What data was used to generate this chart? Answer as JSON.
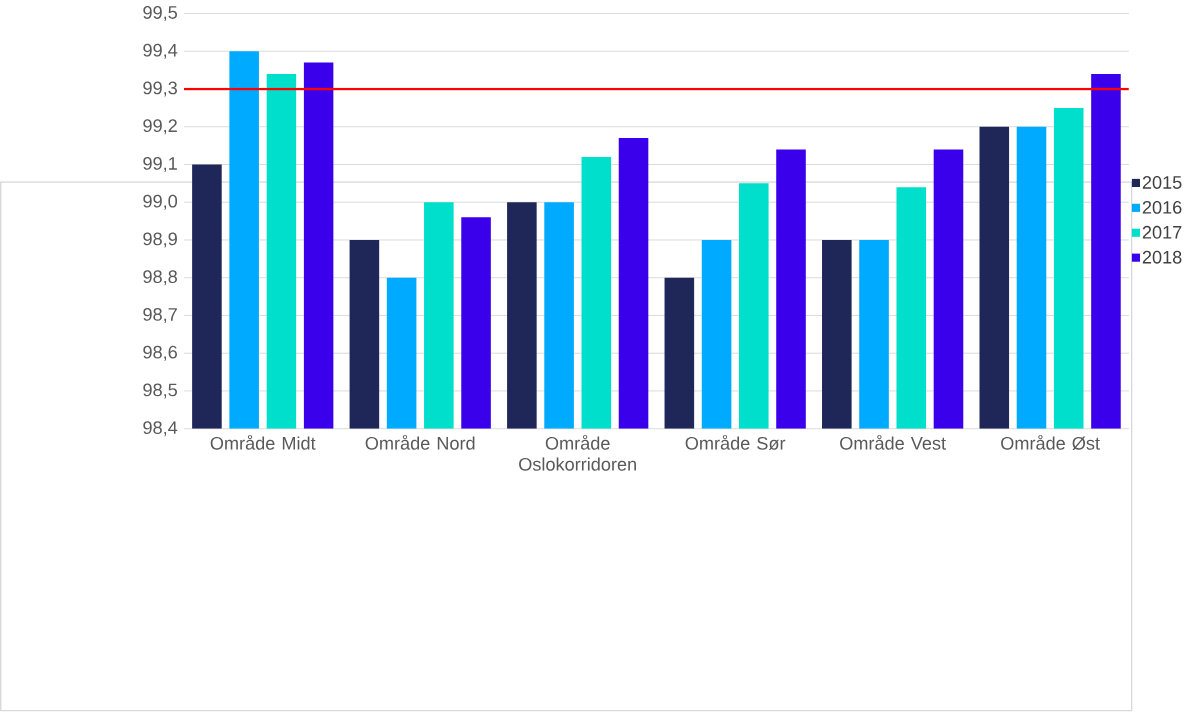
{
  "chart_data": {
    "type": "bar",
    "categories": [
      "Område Midt",
      "Område Nord",
      "Område Oslokorridoren",
      "Område Sør",
      "Område Vest",
      "Område Øst"
    ],
    "series": [
      {
        "name": "2015",
        "color": "#1f2759",
        "values": [
          99.1,
          98.9,
          99.0,
          98.8,
          98.9,
          99.2
        ]
      },
      {
        "name": "2016",
        "color": "#00aaff",
        "values": [
          99.4,
          98.8,
          99.0,
          98.9,
          98.9,
          99.2
        ]
      },
      {
        "name": "2017",
        "color": "#00dfcc",
        "values": [
          99.34,
          99.0,
          99.12,
          99.05,
          99.04,
          99.25
        ]
      },
      {
        "name": "2018",
        "color": "#3b00eb",
        "values": [
          99.37,
          98.96,
          99.17,
          99.14,
          99.14,
          99.34
        ]
      }
    ],
    "ylim": [
      98.4,
      99.5
    ],
    "yticks": [
      {
        "value": 98.4,
        "label": "98,4"
      },
      {
        "value": 98.5,
        "label": "98,5"
      },
      {
        "value": 98.6,
        "label": "98,6"
      },
      {
        "value": 98.7,
        "label": "98,7"
      },
      {
        "value": 98.8,
        "label": "98,8"
      },
      {
        "value": 98.9,
        "label": "98,9"
      },
      {
        "value": 99.0,
        "label": "99,0"
      },
      {
        "value": 99.1,
        "label": "99,1"
      },
      {
        "value": 99.2,
        "label": "99,2"
      },
      {
        "value": 99.3,
        "label": "99,3"
      },
      {
        "value": 99.4,
        "label": "99,4"
      },
      {
        "value": 99.5,
        "label": "99,5"
      }
    ],
    "ref_lines": [
      {
        "axis": "y",
        "value": 99.3,
        "color": "#ff0000"
      }
    ],
    "grid": "y",
    "legend": "right"
  }
}
